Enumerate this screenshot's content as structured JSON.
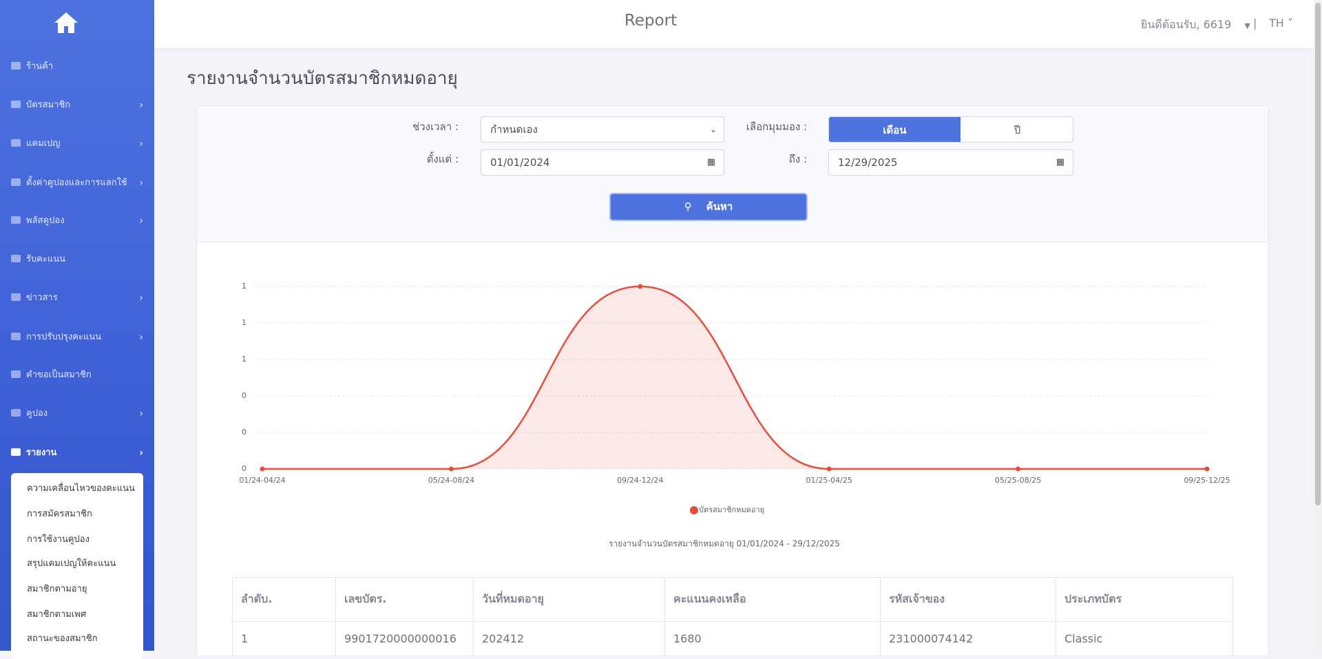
{
  "header": {
    "title": "Report",
    "welcome": "ยินดีต้อนรับ, 6619",
    "separator": "|",
    "language": "TH"
  },
  "sidebar": {
    "menu": [
      "ร้านค้า",
      "บัตรสมาชิก",
      "แคมเปญ",
      "ตั้งค่าคูปองและการแลกใช้",
      "พลัสคูปอง",
      "รับคะแนน",
      "ข่าวสาร",
      "การปรับปรุงคะแนน",
      "คำขอเป็นสมาชิก",
      "คูปอง",
      "รายงาน"
    ],
    "submenu": [
      "ความเคลื่อนไหวของคะแนน",
      "การสมัครสมาชิก",
      "การใช้งานคูปอง",
      "สรุปแคมเปญให้คะแนน",
      "สมาชิกตามอายุ",
      "สมาชิกตามเพศ",
      "สถานะของสมาชิก"
    ]
  },
  "page_title": "รายงานจำนวนบัตรสมาชิกหมดอายุ",
  "filters": {
    "period_label": "ช่วงเวลา :",
    "period_value": "กำหนดเอง",
    "view_label": "เลือกมุมมอง :",
    "view_options": [
      "เดือน",
      "ปี"
    ],
    "from_label": "ตั้งแต่ :",
    "from_value": "01/01/2024",
    "to_label": "ถึง :",
    "to_value": "12/29/2025",
    "search_button": "ค้นหา"
  },
  "chart_data": {
    "type": "area",
    "categories": [
      "01/24-04/24",
      "05/24-08/24",
      "09/24-12/24",
      "01/25-04/25",
      "05/25-08/25",
      "09/25-12/25"
    ],
    "series": [
      {
        "name": "บัตรสมาชิกหมดอายุ",
        "color": "#e74c3c",
        "values": [
          0,
          0,
          1,
          0,
          0,
          0
        ]
      }
    ],
    "ylim": [
      0,
      1
    ],
    "yticks": [
      0,
      {
        "value": 0.2,
        "label": "0"
      },
      {
        "value": 0.4,
        "label": "0"
      },
      {
        "value": 0.6,
        "label": "1"
      },
      {
        "value": 0.8,
        "label": "1"
      },
      1
    ],
    "grid": true,
    "caption": "รายงานจำนวนบัตรสมาชิกหมดอายุ 01/01/2024 - 29/12/2025"
  },
  "table": {
    "headers": [
      "ลำดับ.",
      "เลขบัตร.",
      "วันที่หมดอายุ",
      "คะแนนคงเหลือ",
      "รหัสเจ้าของ",
      "ประเภทบัตร"
    ],
    "rows": [
      [
        1,
        "9901720000000016",
        202412,
        1680,
        "231000074142",
        "Classic"
      ]
    ]
  }
}
